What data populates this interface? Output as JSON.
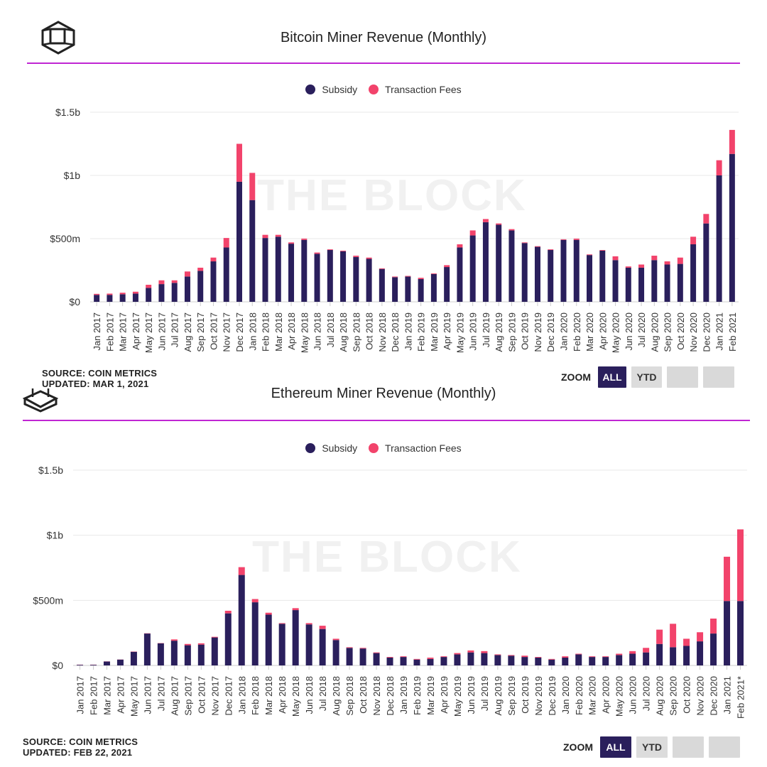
{
  "colors": {
    "subsidy": "#2a1f5c",
    "fees": "#f2436b",
    "accent": "#c026d3",
    "grid": "#e8e8e8"
  },
  "watermark": "THE BLOCK",
  "panels": [
    {
      "title": "Bitcoin Miner Revenue (Monthly)",
      "legend": {
        "subsidy": "Subsidy",
        "fees": "Transaction Fees"
      },
      "source": "SOURCE: COIN METRICS",
      "updated": "UPDATED: MAR 1, 2021",
      "zoom": {
        "label": "ZOOM",
        "all": "ALL",
        "ytd": "YTD"
      }
    },
    {
      "title": "Ethereum Miner Revenue (Monthly)",
      "legend": {
        "subsidy": "Subsidy",
        "fees": "Transaction Fees"
      },
      "source": "SOURCE: COIN METRICS",
      "updated": "UPDATED: FEB 22, 2021",
      "zoom": {
        "label": "ZOOM",
        "all": "ALL",
        "ytd": "YTD"
      }
    }
  ],
  "chart_data": [
    {
      "type": "bar",
      "stacked": true,
      "title": "Bitcoin Miner Revenue (Monthly)",
      "categories": [
        "Jan 2017",
        "Feb 2017",
        "Mar 2017",
        "Apr 2017",
        "May 2017",
        "Jun 2017",
        "Jul 2017",
        "Aug 2017",
        "Sep 2017",
        "Oct 2017",
        "Nov 2017",
        "Dec 2017",
        "Jan 2018",
        "Feb 2018",
        "Mar 2018",
        "Apr 2018",
        "May 2018",
        "Jun 2018",
        "Jul 2018",
        "Aug 2018",
        "Sep 2018",
        "Oct 2018",
        "Nov 2018",
        "Dec 2018",
        "Jan 2019",
        "Feb 2019",
        "Mar 2019",
        "Apr 2019",
        "May 2019",
        "Jun 2019",
        "Jul 2019",
        "Aug 2019",
        "Sep 2019",
        "Oct 2019",
        "Nov 2019",
        "Dec 2019",
        "Jan 2020",
        "Feb 2020",
        "Mar 2020",
        "Apr 2020",
        "May 2020",
        "Jun 2020",
        "Jul 2020",
        "Aug 2020",
        "Sep 2020",
        "Oct 2020",
        "Nov 2020",
        "Dec 2020",
        "Jan 2021",
        "Feb 2021"
      ],
      "series": [
        {
          "name": "Subsidy",
          "values": [
            55,
            55,
            60,
            65,
            110,
            140,
            150,
            200,
            245,
            320,
            430,
            950,
            805,
            505,
            515,
            460,
            490,
            380,
            410,
            400,
            355,
            340,
            260,
            195,
            200,
            180,
            220,
            275,
            430,
            525,
            630,
            610,
            565,
            465,
            435,
            410,
            490,
            490,
            370,
            405,
            330,
            270,
            270,
            330,
            295,
            300,
            455,
            620,
            1000,
            1170
          ]
        },
        {
          "name": "Transaction Fees",
          "values": [
            8,
            10,
            12,
            15,
            25,
            30,
            20,
            40,
            25,
            30,
            75,
            300,
            215,
            25,
            15,
            10,
            10,
            10,
            5,
            5,
            10,
            10,
            5,
            5,
            5,
            10,
            5,
            15,
            25,
            40,
            25,
            10,
            10,
            5,
            5,
            5,
            5,
            10,
            5,
            5,
            30,
            10,
            25,
            35,
            25,
            50,
            60,
            75,
            120,
            190
          ]
        }
      ],
      "yticks": [
        "$0",
        "$500m",
        "$1b",
        "$1.5b"
      ],
      "ylim": [
        0,
        1500
      ],
      "unit": "USD millions",
      "grid": true,
      "legend_position": "top-center"
    },
    {
      "type": "bar",
      "stacked": true,
      "title": "Ethereum Miner Revenue (Monthly)",
      "categories": [
        "Jan 2017",
        "Feb 2017",
        "Mar 2017",
        "Apr 2017",
        "May 2017",
        "Jun 2017",
        "Jul 2017",
        "Aug 2017",
        "Sep 2017",
        "Oct 2017",
        "Nov 2017",
        "Dec 2017",
        "Jan 2018",
        "Feb 2018",
        "Mar 2018",
        "Apr 2018",
        "May 2018",
        "Jun 2018",
        "Jul 2018",
        "Aug 2018",
        "Sep 2018",
        "Oct 2018",
        "Nov 2018",
        "Dec 2018",
        "Jan 2019",
        "Feb 2019",
        "Mar 2019",
        "Apr 2019",
        "May 2019",
        "Jun 2019",
        "Jul 2019",
        "Aug 2019",
        "Sep 2019",
        "Oct 2019",
        "Nov 2019",
        "Dec 2019",
        "Jan 2020",
        "Feb 2020",
        "Mar 2020",
        "Apr 2020",
        "May 2020",
        "Jun 2020",
        "Jul 2020",
        "Aug 2020",
        "Sep 2020",
        "Oct 2020",
        "Nov 2020",
        "Dec 2020",
        "Jan 2021",
        "Feb 2021*"
      ],
      "series": [
        {
          "name": "Subsidy",
          "values": [
            5,
            5,
            30,
            45,
            105,
            245,
            170,
            190,
            155,
            160,
            215,
            400,
            695,
            485,
            390,
            320,
            425,
            315,
            280,
            195,
            135,
            130,
            95,
            60,
            65,
            45,
            50,
            65,
            85,
            100,
            95,
            80,
            75,
            65,
            60,
            45,
            60,
            85,
            65,
            65,
            80,
            90,
            100,
            165,
            140,
            150,
            185,
            245,
            495,
            495
          ]
        },
        {
          "name": "Transaction Fees",
          "values": [
            1,
            1,
            1,
            1,
            2,
            2,
            2,
            10,
            10,
            10,
            5,
            20,
            60,
            25,
            15,
            5,
            15,
            10,
            25,
            10,
            5,
            5,
            5,
            5,
            5,
            5,
            10,
            5,
            10,
            15,
            15,
            5,
            5,
            10,
            5,
            5,
            10,
            5,
            5,
            5,
            10,
            20,
            35,
            110,
            180,
            55,
            70,
            115,
            340,
            550
          ]
        }
      ],
      "yticks": [
        "$0",
        "$500m",
        "$1b",
        "$1.5b"
      ],
      "ylim": [
        0,
        1500
      ],
      "unit": "USD millions",
      "grid": true,
      "legend_position": "top-center"
    }
  ]
}
